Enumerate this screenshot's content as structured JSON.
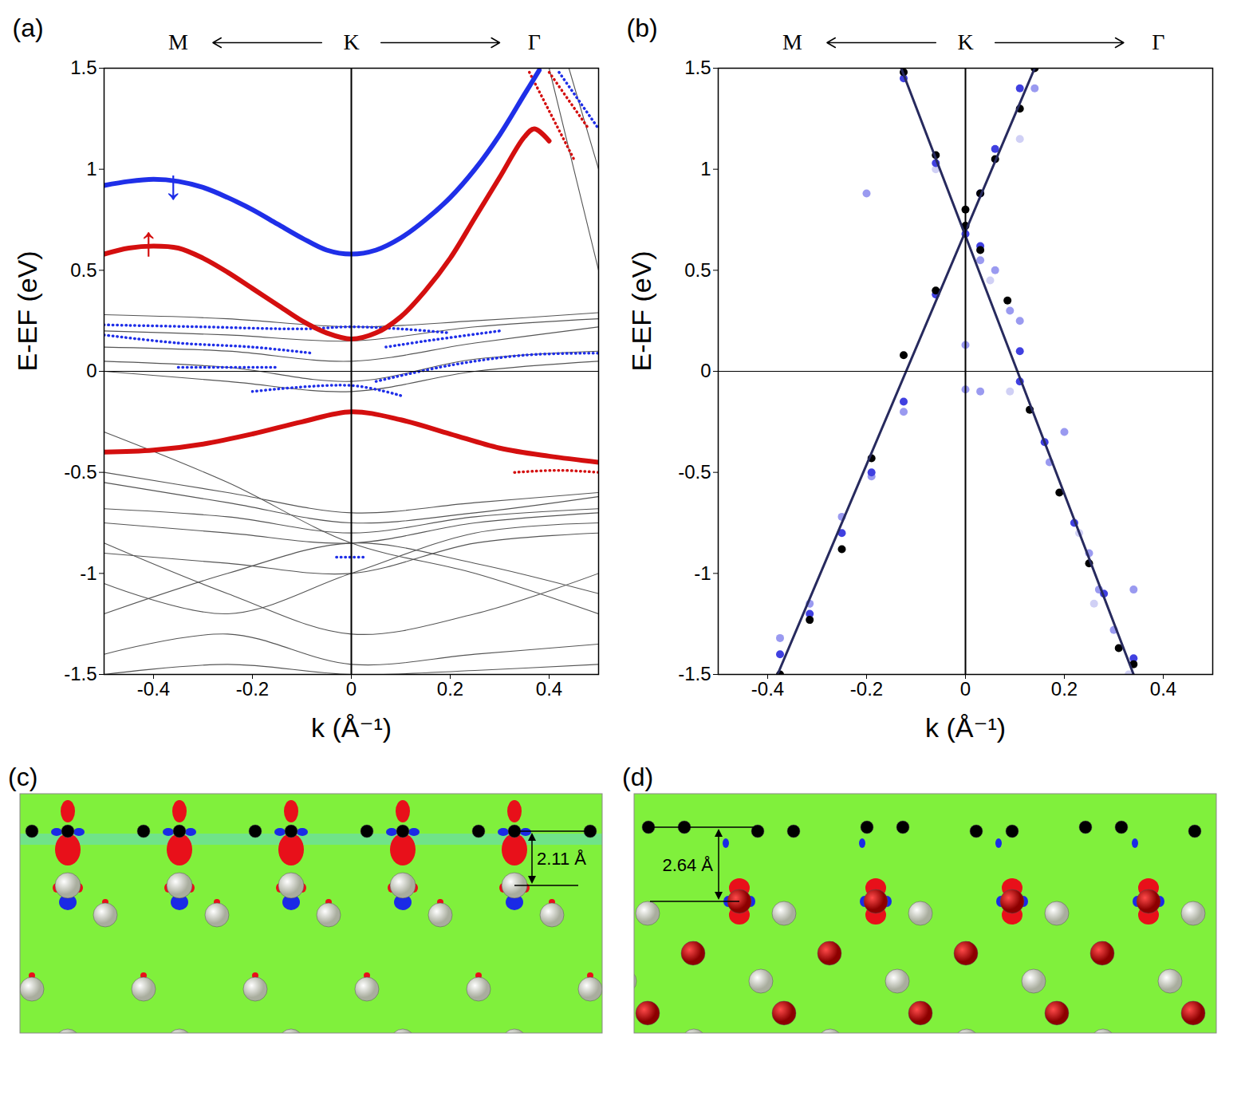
{
  "chart_data": [
    {
      "type": "line",
      "title": "(a)",
      "xlabel": "k (Å⁻¹)",
      "ylabel": "E-EF (eV)",
      "xlim": [
        -0.5,
        0.5
      ],
      "xticks": [
        -0.4,
        -0.2,
        0,
        0.2,
        0.4
      ],
      "ylim": [
        -1.5,
        1.5
      ],
      "yticks": [
        -1.5,
        -1,
        -0.5,
        0,
        0.5,
        1,
        1.5
      ],
      "path_labels": [
        {
          "text": "M",
          "x": -0.35
        },
        {
          "text": "K",
          "x": 0
        },
        {
          "text": "Γ",
          "x": 0.37
        }
      ],
      "reference_lines": {
        "x": [
          0
        ],
        "y": [
          0
        ]
      },
      "annotations": [
        {
          "text": "↓",
          "x": -0.36,
          "y": 0.92,
          "color": "#1f2fe8"
        },
        {
          "text": "↑",
          "x": -0.41,
          "y": 0.64,
          "color": "#d40f0f"
        }
      ],
      "series": [
        {
          "type": "line",
          "line_style": "solid",
          "color": "#555555",
          "x": [
            -0.5,
            -0.25,
            0,
            0.25,
            0.5
          ],
          "values": [
            0.28,
            0.26,
            0.22,
            0.25,
            0.29
          ]
        },
        {
          "type": "line",
          "line_style": "solid",
          "color": "#555555",
          "x": [
            -0.5,
            -0.25,
            0,
            0.25,
            0.5
          ],
          "values": [
            0.2,
            0.18,
            0.15,
            0.22,
            0.26
          ]
        },
        {
          "type": "line",
          "line_style": "solid",
          "color": "#555555",
          "x": [
            -0.5,
            -0.25,
            0,
            0.25,
            0.5
          ],
          "values": [
            0.12,
            0.1,
            0.05,
            0.14,
            0.22
          ]
        },
        {
          "type": "line",
          "line_style": "solid",
          "color": "#555555",
          "x": [
            -0.5,
            -0.25,
            0,
            0.25,
            0.5
          ],
          "values": [
            0.05,
            0.02,
            -0.05,
            0.06,
            0.1
          ]
        },
        {
          "type": "line",
          "line_style": "solid",
          "color": "#555555",
          "x": [
            -0.5,
            -0.25,
            0,
            0.25,
            0.5
          ],
          "values": [
            0,
            -0.05,
            -0.1,
            0,
            0.05
          ]
        },
        {
          "type": "line",
          "line_style": "solid",
          "color": "#555555",
          "x": [
            -0.5,
            -0.25,
            0,
            0.25,
            0.5
          ],
          "values": [
            -0.5,
            -0.6,
            -0.7,
            -0.65,
            -0.6
          ]
        },
        {
          "type": "line",
          "line_style": "solid",
          "color": "#555555",
          "x": [
            -0.5,
            -0.25,
            0,
            0.25,
            0.5
          ],
          "values": [
            -0.55,
            -0.65,
            -0.75,
            -0.7,
            -0.62
          ]
        },
        {
          "type": "line",
          "line_style": "solid",
          "color": "#555555",
          "x": [
            -0.5,
            -0.25,
            0,
            0.25,
            0.5
          ],
          "values": [
            -0.68,
            -0.72,
            -0.8,
            -0.72,
            -0.68
          ]
        },
        {
          "type": "line",
          "line_style": "solid",
          "color": "#555555",
          "x": [
            -0.5,
            -0.25,
            0,
            0.25,
            0.5
          ],
          "values": [
            -0.3,
            -0.55,
            -0.85,
            -1,
            -1.2
          ]
        },
        {
          "type": "line",
          "line_style": "solid",
          "color": "#555555",
          "x": [
            -0.5,
            -0.25,
            0,
            0.25,
            0.5
          ],
          "values": [
            -0.75,
            -0.8,
            -0.85,
            -0.75,
            -0.7
          ]
        },
        {
          "type": "line",
          "line_style": "solid",
          "color": "#555555",
          "x": [
            -0.5,
            -0.25,
            0,
            0.25,
            0.5
          ],
          "values": [
            -0.9,
            -0.95,
            -1,
            -0.85,
            -0.8
          ]
        },
        {
          "type": "line",
          "line_style": "solid",
          "color": "#555555",
          "x": [
            -0.5,
            -0.25,
            0,
            0.25,
            0.5
          ],
          "values": [
            -1.2,
            -1,
            -0.85,
            -0.95,
            -1.1
          ]
        },
        {
          "type": "line",
          "line_style": "solid",
          "color": "#555555",
          "x": [
            -0.5,
            -0.25,
            0,
            0.25,
            0.5
          ],
          "values": [
            -1.4,
            -1.3,
            -1.45,
            -1.4,
            -1.35
          ]
        },
        {
          "type": "line",
          "line_style": "solid",
          "color": "#555555",
          "x": [
            -0.5,
            -0.25,
            0,
            0.25,
            0.5
          ],
          "values": [
            -1.5,
            -1.45,
            -1.5,
            -1.48,
            -1.45
          ]
        },
        {
          "type": "line",
          "line_style": "solid",
          "color": "#555555",
          "x": [
            -0.5,
            -0.25,
            0,
            0.25,
            0.5
          ],
          "values": [
            -0.85,
            -1.1,
            -1.3,
            -1.2,
            -1
          ]
        },
        {
          "type": "line",
          "line_style": "solid",
          "color": "#555555",
          "x": [
            -0.5,
            -0.25,
            0,
            0.25,
            0.5
          ],
          "values": [
            -1.05,
            -1.2,
            -1,
            -0.8,
            -0.75
          ]
        },
        {
          "type": "line",
          "line_style": "solid",
          "color": "#555555",
          "x": [
            0.4,
            0.5
          ],
          "values": [
            1.5,
            0.5
          ]
        },
        {
          "type": "line",
          "line_style": "solid",
          "color": "#555555",
          "x": [
            0.44,
            0.5
          ],
          "values": [
            1.5,
            1
          ]
        },
        {
          "type": "line",
          "line_style": "dotted",
          "color": "#1f2fe8",
          "x": [
            -0.5,
            -0.3,
            -0.1,
            0,
            0.1,
            0.2
          ],
          "values": [
            0.23,
            0.22,
            0.21,
            0.22,
            0.21,
            0.19
          ]
        },
        {
          "type": "line",
          "line_style": "dotted",
          "color": "#1f2fe8",
          "x": [
            0.07,
            0.15,
            0.3
          ],
          "values": [
            0.12,
            0.15,
            0.2
          ]
        },
        {
          "type": "line",
          "line_style": "dotted",
          "color": "#1f2fe8",
          "x": [
            -0.5,
            -0.35,
            -0.2,
            -0.08
          ],
          "values": [
            0.18,
            0.14,
            0.12,
            0.09
          ]
        },
        {
          "type": "line",
          "line_style": "dotted",
          "color": "#1f2fe8",
          "x": [
            -0.35,
            -0.15
          ],
          "values": [
            0.02,
            0.02
          ]
        },
        {
          "type": "line",
          "line_style": "dotted",
          "color": "#1f2fe8",
          "x": [
            -0.2,
            0,
            0.1
          ],
          "values": [
            -0.1,
            -0.07,
            -0.12
          ]
        },
        {
          "type": "line",
          "line_style": "dotted",
          "color": "#1f2fe8",
          "x": [
            0.05,
            0.2,
            0.35,
            0.5
          ],
          "values": [
            -0.05,
            0.03,
            0.08,
            0.09
          ]
        },
        {
          "type": "line",
          "line_style": "dotted",
          "color": "#1f2fe8",
          "x": [
            -0.03,
            0.03
          ],
          "values": [
            -0.92,
            -0.92
          ]
        },
        {
          "type": "line",
          "line_style": "dotted",
          "color": "#1f2fe8",
          "x": [
            0.42,
            0.5
          ],
          "values": [
            1.48,
            1.2
          ]
        },
        {
          "type": "line",
          "line_style": "dotted",
          "color": "#d40f0f",
          "x": [
            0.33,
            0.42,
            0.5
          ],
          "values": [
            -0.5,
            -0.49,
            -0.5
          ]
        },
        {
          "type": "line",
          "line_style": "dotted",
          "color": "#d40f0f",
          "x": [
            0.36,
            0.45
          ],
          "values": [
            1.48,
            1.05
          ]
        },
        {
          "type": "line",
          "line_style": "dotted",
          "color": "#d40f0f",
          "x": [
            0.4,
            0.48
          ],
          "values": [
            1.48,
            1.2
          ]
        },
        {
          "type": "line",
          "line_style": "thick",
          "color": "#1f2fe8",
          "x": [
            -0.5,
            -0.45,
            -0.4,
            -0.35,
            -0.3,
            -0.25,
            -0.2,
            -0.15,
            -0.1,
            -0.05,
            0,
            0.05,
            0.1,
            0.15,
            0.2,
            0.25,
            0.3,
            0.35,
            0.38
          ],
          "values": [
            0.92,
            0.94,
            0.95,
            0.94,
            0.91,
            0.86,
            0.8,
            0.73,
            0.66,
            0.6,
            0.58,
            0.6,
            0.66,
            0.75,
            0.86,
            1,
            1.17,
            1.37,
            1.49
          ]
        },
        {
          "type": "line",
          "line_style": "thick",
          "color": "#d40f0f",
          "x": [
            -0.5,
            -0.45,
            -0.4,
            -0.35,
            -0.3,
            -0.25,
            -0.2,
            -0.15,
            -0.1,
            -0.05,
            0,
            0.05,
            0.1,
            0.15,
            0.2,
            0.25,
            0.3,
            0.35,
            0.37,
            0.4
          ],
          "values": [
            0.58,
            0.61,
            0.62,
            0.61,
            0.56,
            0.49,
            0.41,
            0.33,
            0.25,
            0.19,
            0.16,
            0.19,
            0.27,
            0.4,
            0.56,
            0.76,
            0.96,
            1.16,
            1.2,
            1.14
          ]
        },
        {
          "type": "line",
          "line_style": "thick",
          "color": "#d40f0f",
          "x": [
            -0.5,
            -0.4,
            -0.3,
            -0.2,
            -0.1,
            0,
            0.1,
            0.2,
            0.3,
            0.4,
            0.5
          ],
          "values": [
            -0.4,
            -0.39,
            -0.36,
            -0.31,
            -0.25,
            -0.2,
            -0.24,
            -0.31,
            -0.38,
            -0.42,
            -0.45
          ]
        }
      ]
    },
    {
      "type": "scatter",
      "title": "(b)",
      "xlabel": "k (Å⁻¹)",
      "ylabel": "E-EF (eV)",
      "xlim": [
        -0.5,
        0.5
      ],
      "xticks": [
        -0.4,
        -0.2,
        0,
        0.2,
        0.4
      ],
      "ylim": [
        -1.5,
        1.5
      ],
      "yticks": [
        -1.5,
        -1,
        -0.5,
        0,
        0.5,
        1,
        1.5
      ],
      "path_labels": [
        {
          "text": "M",
          "x": -0.35
        },
        {
          "text": "K",
          "x": 0
        },
        {
          "text": "Γ",
          "x": 0.39
        }
      ],
      "reference_lines": {
        "x": [
          0
        ],
        "y": [
          0
        ]
      },
      "series": [
        {
          "type": "scatter",
          "marker": "dot",
          "color": "#d0d0f5",
          "x": [
            0.05,
            0.09,
            0.23,
            0.26,
            -0.06,
            0.11,
            0.33
          ],
          "values": [
            0.45,
            -0.1,
            -0.8,
            -1.15,
            1,
            1.15,
            -1.5
          ]
        },
        {
          "type": "scatter",
          "marker": "dot",
          "color": "#9a9af0",
          "x": [
            -0.375,
            -0.315,
            -0.25,
            -0.19,
            -0.125,
            -0.2,
            0,
            0,
            0.03,
            0.06,
            0.09,
            0.11,
            0.17,
            0.2,
            0.25,
            0.27,
            0.3,
            0.34,
            0.14,
            0.03
          ],
          "values": [
            -1.32,
            -1.15,
            -0.72,
            -0.52,
            -0.2,
            0.88,
            0.13,
            -0.09,
            -0.1,
            0.5,
            0.3,
            0.25,
            -0.45,
            -0.3,
            -0.9,
            -1.08,
            -1.28,
            -1.08,
            1.4,
            0.55
          ]
        },
        {
          "type": "scatter",
          "marker": "dot",
          "color": "#4040e0",
          "x": [
            -0.375,
            -0.315,
            -0.25,
            -0.19,
            -0.125,
            -0.06,
            0,
            0.03,
            0.06,
            0.11,
            -0.125,
            -0.06,
            0.03,
            0.11,
            0.16,
            0.22,
            0.28,
            0.34,
            0.11
          ],
          "values": [
            -1.4,
            -1.2,
            -0.8,
            -0.5,
            -0.15,
            0.38,
            0.68,
            0.62,
            1.1,
            1.4,
            1.45,
            1.03,
            0.88,
            0.1,
            -0.35,
            -0.75,
            -1.1,
            -1.42,
            -0.05
          ]
        },
        {
          "type": "scatter",
          "marker": "dot",
          "color": "#000000",
          "x": [
            -0.375,
            -0.315,
            -0.25,
            -0.19,
            -0.125,
            -0.06,
            0,
            0.03,
            0.06,
            0.11,
            0.14,
            -0.125,
            -0.06,
            0,
            0.03,
            0.085,
            0.13,
            0.19,
            0.25,
            0.31,
            0.34
          ],
          "values": [
            -1.5,
            -1.23,
            -0.88,
            -0.43,
            0.08,
            0.4,
            0.72,
            0.88,
            1.05,
            1.3,
            1.5,
            1.48,
            1.07,
            0.8,
            0.6,
            0.35,
            -0.19,
            -0.6,
            -0.95,
            -1.37,
            -1.45
          ]
        },
        {
          "type": "line",
          "line_style": "medium",
          "color": "#272a5e",
          "x": [
            -0.38,
            0.14
          ],
          "values": [
            -1.5,
            1.5
          ]
        },
        {
          "type": "line",
          "line_style": "medium",
          "color": "#272a5e",
          "x": [
            -0.13,
            0.34
          ],
          "values": [
            1.5,
            -1.5
          ]
        }
      ]
    }
  ],
  "diagrams": [
    {
      "title": "(c)",
      "annotation": "2.11 Å"
    },
    {
      "title": "(d)",
      "annotation": "2.64 Å"
    }
  ]
}
